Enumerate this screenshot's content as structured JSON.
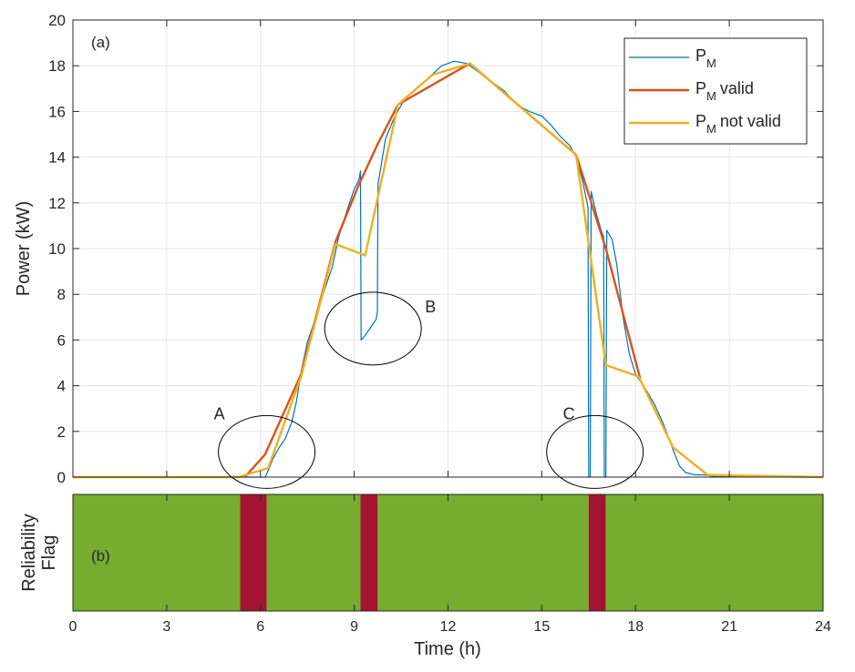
{
  "chart_data": [
    {
      "panel": "(a)",
      "type": "line",
      "xlim": [
        0,
        24
      ],
      "ylim": [
        0,
        20
      ],
      "yticks": [
        0,
        2,
        4,
        6,
        8,
        10,
        12,
        14,
        16,
        18,
        20
      ],
      "xticks": [
        0,
        3,
        6,
        9,
        12,
        15,
        18,
        21,
        24
      ],
      "ylabel": "Power (kW)",
      "grid": true,
      "legend_position": "top-right",
      "series": [
        {
          "name": "P_M",
          "legend_main": "P",
          "legend_sub": "M",
          "legend_suffix": "",
          "color": "#0072BD",
          "points": [
            [
              0,
              0
            ],
            [
              5.5,
              0
            ],
            [
              6.0,
              0
            ],
            [
              6.15,
              0
            ],
            [
              6.25,
              0.3
            ],
            [
              6.4,
              0.8
            ],
            [
              6.6,
              1.3
            ],
            [
              6.8,
              1.7
            ],
            [
              7.0,
              2.4
            ],
            [
              7.15,
              3.3
            ],
            [
              7.3,
              4.6
            ],
            [
              7.5,
              5.9
            ],
            [
              7.8,
              7.1
            ],
            [
              8.0,
              8.0
            ],
            [
              8.3,
              9.2
            ],
            [
              8.5,
              10.5
            ],
            [
              8.8,
              11.8
            ],
            [
              9.0,
              12.6
            ],
            [
              9.15,
              13.0
            ],
            [
              9.2,
              13.4
            ],
            [
              9.22,
              6.0
            ],
            [
              9.35,
              6.2
            ],
            [
              9.5,
              6.5
            ],
            [
              9.7,
              6.9
            ],
            [
              9.74,
              7.2
            ],
            [
              9.76,
              12.8
            ],
            [
              10.0,
              14.8
            ],
            [
              10.3,
              15.8
            ],
            [
              10.6,
              16.5
            ],
            [
              11.0,
              17.0
            ],
            [
              11.4,
              17.5
            ],
            [
              11.8,
              18.0
            ],
            [
              12.2,
              18.2
            ],
            [
              12.6,
              18.1
            ],
            [
              13.0,
              17.7
            ],
            [
              13.4,
              17.3
            ],
            [
              13.8,
              16.9
            ],
            [
              14.2,
              16.3
            ],
            [
              14.6,
              16.0
            ],
            [
              15.0,
              15.8
            ],
            [
              15.3,
              15.4
            ],
            [
              15.6,
              14.9
            ],
            [
              15.9,
              14.5
            ],
            [
              16.1,
              14.0
            ],
            [
              16.3,
              13.0
            ],
            [
              16.48,
              11.8
            ],
            [
              16.5,
              0
            ],
            [
              16.55,
              0
            ],
            [
              16.58,
              12.5
            ],
            [
              16.75,
              11.5
            ],
            [
              16.9,
              10.8
            ],
            [
              16.98,
              10.5
            ],
            [
              17.0,
              0
            ],
            [
              17.05,
              0
            ],
            [
              17.08,
              10.8
            ],
            [
              17.25,
              10.4
            ],
            [
              17.4,
              9.3
            ],
            [
              17.6,
              7.0
            ],
            [
              17.8,
              5.4
            ],
            [
              18.0,
              4.5
            ],
            [
              18.3,
              3.9
            ],
            [
              18.6,
              3.2
            ],
            [
              18.9,
              2.3
            ],
            [
              19.2,
              1.2
            ],
            [
              19.4,
              0.5
            ],
            [
              19.6,
              0.2
            ],
            [
              19.9,
              0.1
            ],
            [
              20.2,
              0.1
            ],
            [
              20.4,
              0.05
            ],
            [
              21.0,
              0.02
            ],
            [
              23.6,
              0
            ],
            [
              24,
              0
            ]
          ]
        },
        {
          "name": "P_M valid",
          "legend_main": "P",
          "legend_sub": "M",
          "legend_suffix": "valid",
          "color": "#D95319",
          "points": [
            [
              5.5,
              0
            ],
            [
              6.15,
              1.0
            ],
            [
              7.3,
              4.5
            ],
            [
              8.4,
              10.3
            ],
            [
              9.15,
              12.8
            ],
            [
              9.76,
              14.6
            ],
            [
              10.4,
              16.3
            ],
            [
              12.7,
              18.1
            ],
            [
              16.1,
              14.1
            ],
            [
              17.05,
              10.0
            ],
            [
              18.15,
              4.3
            ]
          ]
        },
        {
          "name": "P_M not valid",
          "legend_main": "P",
          "legend_sub": "M",
          "legend_suffix": "not valid",
          "color": "#EDB120",
          "points": [
            [
              0,
              0
            ],
            [
              5.3,
              0
            ],
            [
              6.25,
              0.4
            ],
            [
              7.3,
              4.4
            ],
            [
              8.4,
              10.2
            ],
            [
              9.35,
              9.7
            ],
            [
              10.4,
              16.3
            ],
            [
              11.5,
              17.6
            ],
            [
              12.7,
              18.1
            ],
            [
              16.1,
              14.1
            ],
            [
              17.05,
              4.9
            ],
            [
              18.1,
              4.4
            ],
            [
              19.2,
              1.3
            ],
            [
              20.3,
              0.1
            ],
            [
              24,
              0
            ]
          ]
        }
      ],
      "annotations": [
        {
          "label": "A",
          "x": 6.2,
          "y": 1.1
        },
        {
          "label": "B",
          "x": 9.6,
          "y": 6.5
        },
        {
          "label": "C",
          "x": 16.7,
          "y": 1.1
        }
      ]
    },
    {
      "panel": "(b)",
      "type": "heatmap",
      "xlim": [
        0,
        24
      ],
      "xticks": [
        0,
        3,
        6,
        9,
        12,
        15,
        18,
        21,
        24
      ],
      "xlabel": "Time (h)",
      "ylabel_lines": [
        "Reliability",
        "Flag"
      ],
      "valid_color": "#77AC30",
      "invalid_color": "#A2142F",
      "invalid_intervals": [
        [
          5.35,
          6.2
        ],
        [
          9.2,
          9.75
        ],
        [
          16.5,
          17.05
        ]
      ]
    }
  ]
}
